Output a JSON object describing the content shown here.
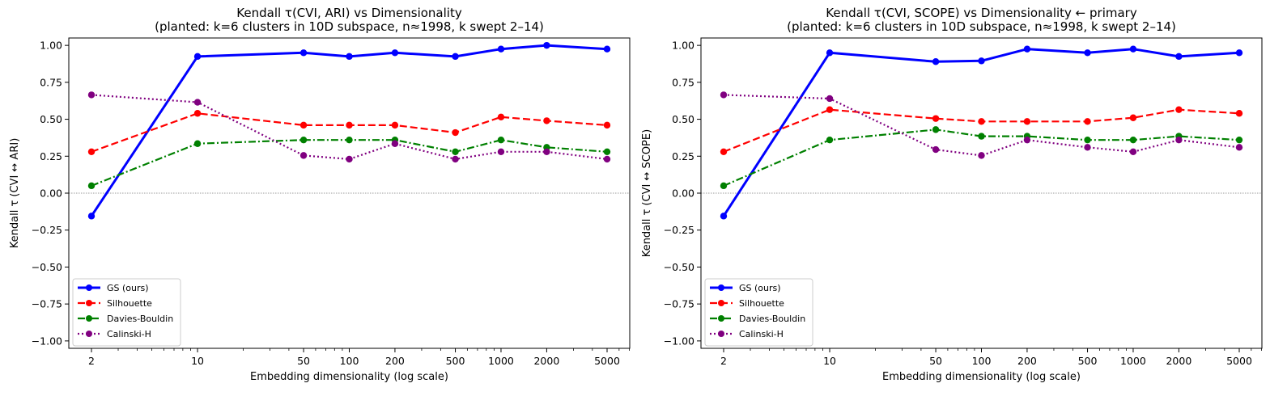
{
  "chart_data": [
    {
      "type": "line",
      "title": "Kendall τ(CVI, ARI) vs Dimensionality",
      "subtitle": "(planted: k=6 clusters in 10D subspace, n≈1998, k swept 2–14)",
      "xlabel": "Embedding dimensionality (log scale)",
      "ylabel": "Kendall τ  (CVI ↔ ARI)",
      "xscale": "log",
      "x": [
        2,
        10,
        50,
        100,
        200,
        500,
        1000,
        2000,
        5000
      ],
      "x_tick_labels": [
        "2",
        "10",
        "50",
        "100",
        "200",
        "500",
        "1000",
        "2000",
        "5000"
      ],
      "ylim": [
        -1.05,
        1.05
      ],
      "y_ticks": [
        -1.0,
        -0.75,
        -0.5,
        -0.25,
        0.0,
        0.25,
        0.5,
        0.75,
        1.0
      ],
      "y_tick_labels": [
        "−1.00",
        "−0.75",
        "−0.50",
        "−0.25",
        "0.00",
        "0.25",
        "0.50",
        "0.75",
        "1.00"
      ],
      "zero_line": true,
      "grid": false,
      "legend_position": "lower-left",
      "series": [
        {
          "name": "GS (ours)",
          "color": "#0000ff",
          "style": "solid",
          "values": [
            -0.155,
            0.925,
            0.95,
            0.925,
            0.95,
            0.925,
            0.975,
            1.0,
            0.975
          ]
        },
        {
          "name": "Silhouette",
          "color": "#ff0000",
          "style": "dashed",
          "values": [
            0.28,
            0.54,
            0.46,
            0.46,
            0.46,
            0.41,
            0.515,
            0.49,
            0.46
          ]
        },
        {
          "name": "Davies-Bouldin",
          "color": "#008000",
          "style": "dashdot",
          "values": [
            0.05,
            0.335,
            0.36,
            0.36,
            0.36,
            0.28,
            0.36,
            0.31,
            0.28
          ]
        },
        {
          "name": "Calinski-H",
          "color": "#800080",
          "style": "dotted",
          "values": [
            0.665,
            0.615,
            0.255,
            0.23,
            0.335,
            0.23,
            0.28,
            0.28,
            0.23
          ]
        }
      ]
    },
    {
      "type": "line",
      "title": "Kendall τ(CVI, SCOPE) vs Dimensionality  ← primary",
      "subtitle": "(planted: k=6 clusters in 10D subspace, n≈1998, k swept 2–14)",
      "xlabel": "Embedding dimensionality (log scale)",
      "ylabel": "Kendall τ  (CVI ↔ SCOPE)",
      "xscale": "log",
      "x": [
        2,
        10,
        50,
        100,
        200,
        500,
        1000,
        2000,
        5000
      ],
      "x_tick_labels": [
        "2",
        "10",
        "50",
        "100",
        "200",
        "500",
        "1000",
        "2000",
        "5000"
      ],
      "ylim": [
        -1.05,
        1.05
      ],
      "y_ticks": [
        -1.0,
        -0.75,
        -0.5,
        -0.25,
        0.0,
        0.25,
        0.5,
        0.75,
        1.0
      ],
      "y_tick_labels": [
        "−1.00",
        "−0.75",
        "−0.50",
        "−0.25",
        "0.00",
        "0.25",
        "0.50",
        "0.75",
        "1.00"
      ],
      "zero_line": true,
      "grid": false,
      "legend_position": "lower-left",
      "series": [
        {
          "name": "GS (ours)",
          "color": "#0000ff",
          "style": "solid",
          "values": [
            -0.155,
            0.95,
            0.89,
            0.895,
            0.975,
            0.95,
            0.975,
            0.925,
            0.95
          ]
        },
        {
          "name": "Silhouette",
          "color": "#ff0000",
          "style": "dashed",
          "values": [
            0.28,
            0.565,
            0.505,
            0.485,
            0.485,
            0.485,
            0.51,
            0.565,
            0.54
          ]
        },
        {
          "name": "Davies-Bouldin",
          "color": "#008000",
          "style": "dashdot",
          "values": [
            0.05,
            0.36,
            0.43,
            0.385,
            0.385,
            0.36,
            0.36,
            0.385,
            0.36
          ]
        },
        {
          "name": "Calinski-H",
          "color": "#800080",
          "style": "dotted",
          "values": [
            0.665,
            0.64,
            0.295,
            0.255,
            0.36,
            0.31,
            0.28,
            0.36,
            0.31
          ]
        }
      ]
    }
  ]
}
